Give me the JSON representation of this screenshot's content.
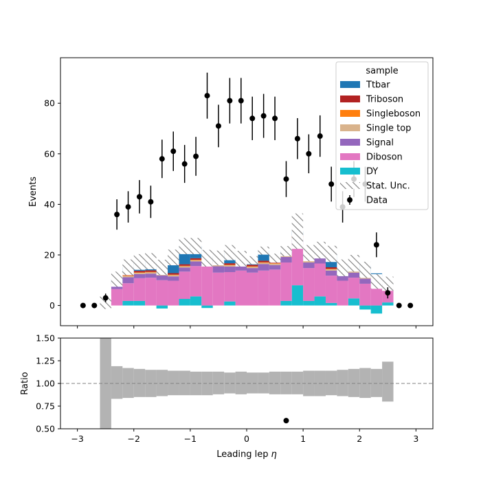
{
  "chart_data": {
    "type": "bar",
    "x_bins": [
      -2.6,
      -2.4,
      -2.2,
      -2.0,
      -1.8,
      -1.6,
      -1.4,
      -1.2,
      -1.0,
      -0.8,
      -0.6,
      -0.4,
      -0.2,
      0.0,
      0.2,
      0.4,
      0.6,
      0.8,
      1.0,
      1.2,
      1.4,
      1.6,
      1.8,
      2.0,
      2.2,
      2.4,
      2.6
    ],
    "xlim": [
      -3.3,
      3.3
    ],
    "xticks": [
      -3,
      -2,
      -1,
      0,
      1,
      2,
      3
    ],
    "xlabel": "Leading lep",
    "xlabel_symbol": "η",
    "main_panel": {
      "ylabel": "Events",
      "ylim": [
        -8,
        98
      ],
      "yticks": [
        0,
        20,
        40,
        60,
        80
      ]
    },
    "legend": {
      "title": "sample",
      "placement": "upper right",
      "entries": [
        "Ttbar",
        "Triboson",
        "Singleboson",
        "Single top",
        "Signal",
        "Diboson",
        "DY",
        "Stat. Unc.",
        "Data"
      ]
    },
    "series": [
      {
        "name": "DY",
        "color": "#17becf",
        "values": [
          0,
          0,
          1.8,
          1.8,
          0,
          -1.2,
          0,
          2.6,
          3.6,
          -1.0,
          0,
          1.6,
          0,
          0,
          0,
          0,
          1.8,
          8.0,
          1.8,
          3.6,
          1.0,
          0,
          2.8,
          -1.6,
          -3.2,
          1.2
        ]
      },
      {
        "name": "Diboson",
        "color": "#e377c2",
        "values": [
          0.3,
          6.5,
          7.0,
          9.0,
          11.0,
          10.0,
          9.8,
          10.8,
          12.0,
          15.6,
          13.0,
          11.6,
          13.8,
          13.0,
          13.8,
          14.2,
          15.2,
          16.8,
          13.0,
          13.0,
          10.8,
          9.8,
          8.2,
          8.6,
          9.2,
          5.2
        ]
      },
      {
        "name": "Signal",
        "color": "#9467bd",
        "values": [
          0.3,
          1.2,
          2.4,
          1.6,
          1.6,
          1.9,
          1.7,
          1.6,
          1.8,
          1.8,
          2.5,
          2.2,
          2.4,
          1.8,
          2.6,
          1.8,
          2.2,
          1.6,
          2.2,
          2.2,
          2.0,
          2.2,
          2.0,
          2.0,
          1.2,
          0.8
        ]
      },
      {
        "name": "Single top",
        "color": "#d9b38c",
        "values": [
          0,
          0.5,
          0.5,
          0.5,
          0.5,
          0.5,
          0.5,
          0.5,
          0.5,
          0.5,
          1.0,
          0.5,
          0.5,
          0.5,
          0.5,
          0.5,
          0.5,
          0.5,
          0.5,
          0.5,
          0.5,
          0.5,
          0.5,
          0.5,
          0.3,
          0.3
        ]
      },
      {
        "name": "Singleboson",
        "color": "#ff7f0e",
        "values": [
          0,
          0.2,
          0.2,
          0.2,
          0.2,
          0.2,
          0.2,
          0.2,
          0.2,
          0.2,
          0.2,
          0.2,
          0.2,
          0.2,
          0.2,
          0.2,
          0.2,
          0.2,
          0.2,
          0.2,
          0.2,
          0.2,
          0.2,
          0.2,
          0.2,
          0.2
        ]
      },
      {
        "name": "Triboson",
        "color": "#b22222",
        "values": [
          0,
          0.4,
          0.6,
          0.6,
          0.6,
          0.5,
          0.6,
          0.6,
          0.6,
          0.6,
          0.5,
          0.6,
          0.6,
          0.6,
          0.6,
          0.6,
          0.5,
          0.6,
          0.6,
          0.6,
          0.6,
          0.5,
          0.6,
          0.6,
          0.4,
          0.3
        ]
      },
      {
        "name": "Ttbar",
        "color": "#1f77b4",
        "values": [
          0.5,
          1.6,
          2.6,
          3.5,
          3.6,
          3.2,
          6.2,
          7.2,
          4.8,
          1.0,
          1.6,
          4.2,
          1.0,
          1.8,
          4.0,
          1.4,
          1.1,
          1.7,
          2.4,
          1.8,
          5.3,
          1.7,
          2.4,
          3.8,
          1.4,
          0.6
        ]
      }
    ],
    "stat_unc_half_width": [
      2.5,
      3.0,
      3.1,
      3.1,
      3.2,
      3.0,
      3.1,
      3.2,
      3.2,
      3.3,
      2.9,
      3.0,
      3.1,
      1.6,
      1.6,
      1.8,
      2.0,
      7.0,
      3.2,
      3.3,
      3.2,
      3.3,
      3.3,
      3.2,
      2.9,
      2.8
    ],
    "stat_unc_style": "hatched grey",
    "data": {
      "name": "Data",
      "x": [
        -2.9,
        -2.7,
        -2.5,
        -2.3,
        -2.1,
        -1.9,
        -1.7,
        -1.5,
        -1.3,
        -1.1,
        -0.9,
        -0.7,
        -0.5,
        -0.3,
        -0.1,
        0.1,
        0.3,
        0.5,
        0.7,
        0.9,
        1.1,
        1.3,
        1.5,
        1.7,
        1.9,
        2.1,
        2.3,
        2.5,
        2.7,
        2.9
      ],
      "y": [
        0,
        0,
        3,
        36,
        39,
        43,
        41,
        58,
        61,
        56,
        59,
        83,
        71,
        81,
        81,
        74,
        75,
        74,
        50,
        66,
        60,
        67,
        48,
        39,
        50,
        48,
        24,
        5,
        0,
        0
      ],
      "err": [
        0,
        0,
        1.7,
        6.0,
        6.2,
        6.6,
        6.4,
        7.6,
        7.8,
        7.5,
        7.7,
        9.1,
        8.4,
        9.0,
        9.0,
        8.6,
        8.7,
        8.6,
        7.1,
        8.1,
        7.7,
        8.2,
        6.9,
        6.2,
        7.1,
        6.9,
        4.9,
        2.2,
        0,
        0
      ]
    },
    "ratio_panel": {
      "ylabel": "Ratio",
      "ylim": [
        0.5,
        1.5
      ],
      "yticks": [
        0.5,
        0.75,
        1.0,
        1.25,
        1.5
      ],
      "ytick_labels": [
        "0.50",
        "0.75",
        "1.00",
        "1.25",
        "1.50"
      ],
      "reference_line": 1.0,
      "unc_band_lo": [
        0.5,
        0.83,
        0.84,
        0.85,
        0.85,
        0.86,
        0.87,
        0.87,
        0.87,
        0.87,
        0.88,
        0.89,
        0.88,
        0.89,
        0.89,
        0.88,
        0.88,
        0.88,
        0.86,
        0.86,
        0.87,
        0.86,
        0.85,
        0.84,
        0.85,
        0.8
      ],
      "unc_band_hi": [
        1.5,
        1.19,
        1.17,
        1.16,
        1.15,
        1.15,
        1.14,
        1.14,
        1.13,
        1.13,
        1.13,
        1.12,
        1.13,
        1.12,
        1.12,
        1.13,
        1.13,
        1.13,
        1.14,
        1.14,
        1.14,
        1.15,
        1.16,
        1.17,
        1.16,
        1.24
      ],
      "points": [
        {
          "x": 0.7,
          "y": 0.59
        }
      ]
    }
  }
}
